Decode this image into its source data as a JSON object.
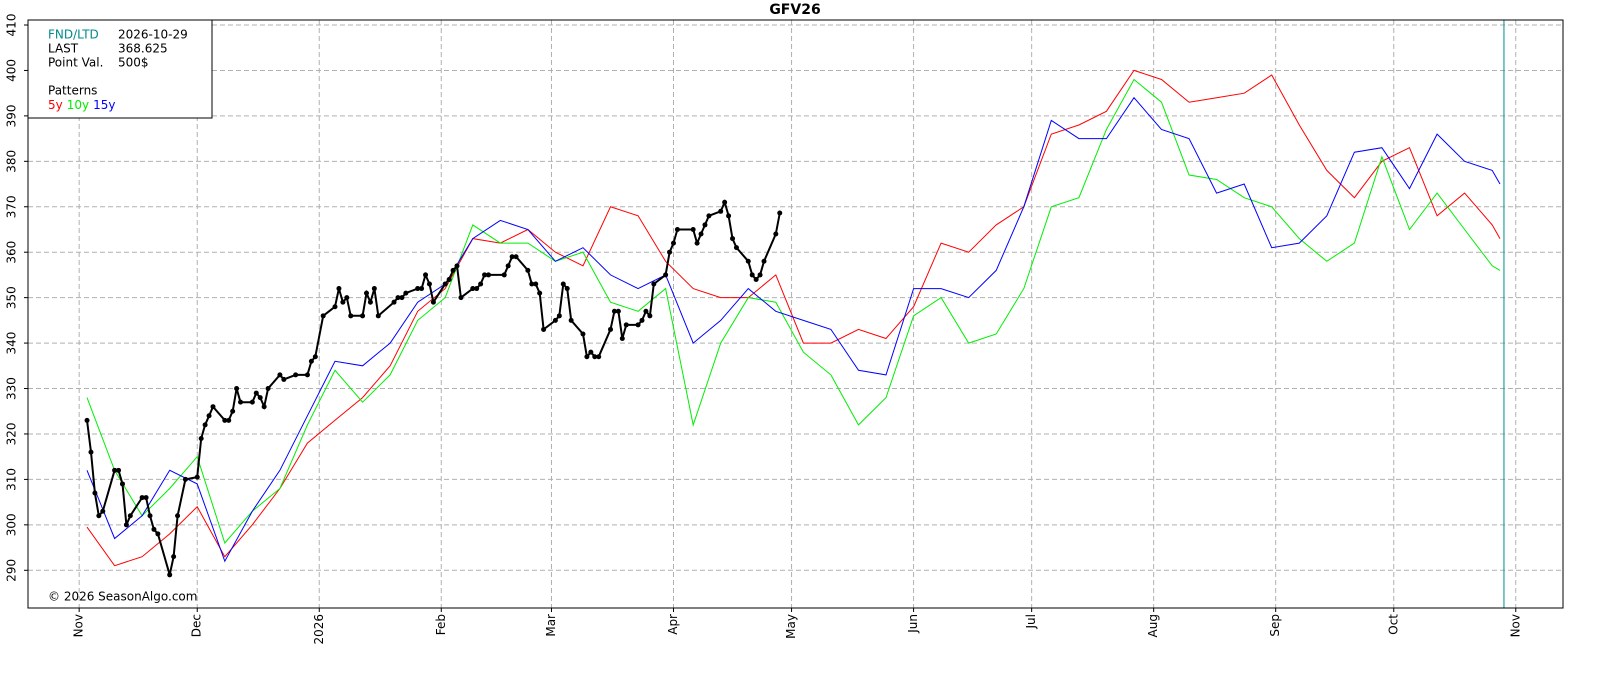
{
  "chart_data": {
    "type": "line",
    "title": "GFV26",
    "info": {
      "fnd_label": "FND/LTD",
      "fnd": "2026-10-29",
      "last_label": "LAST",
      "last": 368.625,
      "point_label": "Point Val.",
      "point_value": "500$",
      "patterns_label": "Patterns"
    },
    "copyright": "© 2026 SeasonAlgo.com",
    "xlim": [
      "2025-10-19",
      "2026-11-13"
    ],
    "xticks": [
      {
        "value": "2025-11-01",
        "label": "Nov"
      },
      {
        "value": "2025-12-01",
        "label": "Dec"
      },
      {
        "value": "2026-01-01",
        "label": "2026"
      },
      {
        "value": "2026-02-01",
        "label": "Feb"
      },
      {
        "value": "2026-03-01",
        "label": "Mar"
      },
      {
        "value": "2026-04-01",
        "label": "Apr"
      },
      {
        "value": "2026-05-01",
        "label": "May"
      },
      {
        "value": "2026-06-01",
        "label": "Jun"
      },
      {
        "value": "2026-07-01",
        "label": "Jul"
      },
      {
        "value": "2026-08-01",
        "label": "Aug"
      },
      {
        "value": "2026-09-01",
        "label": "Sep"
      },
      {
        "value": "2026-10-01",
        "label": "Oct"
      },
      {
        "value": "2026-11-01",
        "label": "Nov"
      }
    ],
    "ylim": [
      281.7,
      411.1
    ],
    "yticks": [
      290,
      300,
      310,
      320,
      330,
      340,
      350,
      360,
      370,
      380,
      390,
      400,
      410
    ],
    "grid": true,
    "series": [
      {
        "name": "5y",
        "color": "#ff0000",
        "x": [
          "2025-11-03",
          "2025-11-10",
          "2025-11-17",
          "2025-11-24",
          "2025-12-01",
          "2025-12-08",
          "2025-12-15",
          "2025-12-22",
          "2025-12-29",
          "2026-01-05",
          "2026-01-12",
          "2026-01-19",
          "2026-01-26",
          "2026-02-02",
          "2026-02-09",
          "2026-02-16",
          "2026-02-23",
          "2026-03-02",
          "2026-03-09",
          "2026-03-16",
          "2026-03-23",
          "2026-03-30",
          "2026-04-06",
          "2026-04-13",
          "2026-04-20",
          "2026-04-27",
          "2026-05-04",
          "2026-05-11",
          "2026-05-18",
          "2026-05-25",
          "2026-06-01",
          "2026-06-08",
          "2026-06-15",
          "2026-06-22",
          "2026-06-29",
          "2026-07-06",
          "2026-07-13",
          "2026-07-20",
          "2026-07-27",
          "2026-08-03",
          "2026-08-10",
          "2026-08-17",
          "2026-08-24",
          "2026-08-31",
          "2026-09-07",
          "2026-09-14",
          "2026-09-21",
          "2026-09-28",
          "2026-10-05",
          "2026-10-12",
          "2026-10-19",
          "2026-10-26",
          "2026-10-28"
        ],
        "values": [
          299.5,
          291,
          293,
          298,
          304,
          293,
          300,
          308,
          318,
          323,
          328,
          335,
          347,
          352,
          363,
          362,
          365,
          360,
          357,
          370,
          368,
          358,
          352,
          350,
          350,
          355,
          340,
          340,
          343,
          341,
          348,
          362,
          360,
          366,
          370,
          386,
          388,
          391,
          400,
          398,
          393,
          394,
          395,
          399,
          388,
          378,
          372,
          380,
          383,
          368,
          373,
          366,
          363
        ]
      },
      {
        "name": "10y",
        "color": "#00ee00",
        "x": [
          "2025-11-03",
          "2025-11-10",
          "2025-11-17",
          "2025-11-24",
          "2025-12-01",
          "2025-12-08",
          "2025-12-15",
          "2025-12-22",
          "2025-12-29",
          "2026-01-05",
          "2026-01-12",
          "2026-01-19",
          "2026-01-26",
          "2026-02-02",
          "2026-02-09",
          "2026-02-16",
          "2026-02-23",
          "2026-03-02",
          "2026-03-09",
          "2026-03-16",
          "2026-03-23",
          "2026-03-30",
          "2026-04-06",
          "2026-04-13",
          "2026-04-20",
          "2026-04-27",
          "2026-05-04",
          "2026-05-11",
          "2026-05-18",
          "2026-05-25",
          "2026-06-01",
          "2026-06-08",
          "2026-06-15",
          "2026-06-22",
          "2026-06-29",
          "2026-07-06",
          "2026-07-13",
          "2026-07-20",
          "2026-07-27",
          "2026-08-03",
          "2026-08-10",
          "2026-08-17",
          "2026-08-24",
          "2026-08-31",
          "2026-09-07",
          "2026-09-14",
          "2026-09-21",
          "2026-09-28",
          "2026-10-05",
          "2026-10-12",
          "2026-10-19",
          "2026-10-26",
          "2026-10-28"
        ],
        "values": [
          328,
          312,
          302,
          308,
          315,
          296,
          303,
          308,
          322,
          334,
          327,
          333,
          345,
          350,
          366,
          362,
          362,
          358,
          360,
          349,
          347,
          352,
          322,
          340,
          350,
          349,
          338,
          333,
          322,
          328,
          346,
          350,
          340,
          342,
          352,
          370,
          372,
          387,
          398,
          393,
          377,
          376,
          372,
          370,
          363,
          358,
          362,
          381,
          365,
          373,
          365,
          357,
          356
        ]
      },
      {
        "name": "15y",
        "color": "#0000ff",
        "x": [
          "2025-11-03",
          "2025-11-10",
          "2025-11-17",
          "2025-11-24",
          "2025-12-01",
          "2025-12-08",
          "2025-12-15",
          "2025-12-22",
          "2025-12-29",
          "2026-01-05",
          "2026-01-12",
          "2026-01-19",
          "2026-01-26",
          "2026-02-02",
          "2026-02-09",
          "2026-02-16",
          "2026-02-23",
          "2026-03-02",
          "2026-03-09",
          "2026-03-16",
          "2026-03-23",
          "2026-03-30",
          "2026-04-06",
          "2026-04-13",
          "2026-04-20",
          "2026-04-27",
          "2026-05-04",
          "2026-05-11",
          "2026-05-18",
          "2026-05-25",
          "2026-06-01",
          "2026-06-08",
          "2026-06-15",
          "2026-06-22",
          "2026-06-29",
          "2026-07-06",
          "2026-07-13",
          "2026-07-20",
          "2026-07-27",
          "2026-08-03",
          "2026-08-10",
          "2026-08-17",
          "2026-08-24",
          "2026-08-31",
          "2026-09-07",
          "2026-09-14",
          "2026-09-21",
          "2026-09-28",
          "2026-10-05",
          "2026-10-12",
          "2026-10-19",
          "2026-10-26",
          "2026-10-28"
        ],
        "values": [
          312,
          297,
          302,
          312,
          309,
          292,
          303,
          312,
          324,
          336,
          335,
          340,
          349,
          353,
          363,
          367,
          365,
          358,
          361,
          355,
          352,
          355,
          340,
          345,
          352,
          347,
          345,
          343,
          334,
          333,
          352,
          352,
          350,
          356,
          370,
          389,
          385,
          385,
          394,
          387,
          385,
          373,
          375,
          361,
          362,
          368,
          382,
          383,
          374,
          386,
          380,
          378,
          375
        ]
      },
      {
        "color": "#000000",
        "markers": true,
        "x": [
          "2025-11-03",
          "2025-11-04",
          "2025-11-05",
          "2025-11-06",
          "2025-11-07",
          "2025-11-10",
          "2025-11-11",
          "2025-11-12",
          "2025-11-13",
          "2025-11-14",
          "2025-11-17",
          "2025-11-18",
          "2025-11-19",
          "2025-11-20",
          "2025-11-21",
          "2025-11-24",
          "2025-11-25",
          "2025-11-26",
          "2025-11-28",
          "2025-12-01",
          "2025-12-02",
          "2025-12-03",
          "2025-12-04",
          "2025-12-05",
          "2025-12-08",
          "2025-12-09",
          "2025-12-10",
          "2025-12-11",
          "2025-12-12",
          "2025-12-15",
          "2025-12-16",
          "2025-12-17",
          "2025-12-18",
          "2025-12-19",
          "2025-12-22",
          "2025-12-23",
          "2025-12-26",
          "2025-12-29",
          "2025-12-30",
          "2025-12-31",
          "2026-01-02",
          "2026-01-05",
          "2026-01-06",
          "2026-01-07",
          "2026-01-08",
          "2026-01-09",
          "2026-01-12",
          "2026-01-13",
          "2026-01-14",
          "2026-01-15",
          "2026-01-16",
          "2026-01-20",
          "2026-01-21",
          "2026-01-22",
          "2026-01-23",
          "2026-01-26",
          "2026-01-27",
          "2026-01-28",
          "2026-01-29",
          "2026-01-30",
          "2026-02-02",
          "2026-02-03",
          "2026-02-04",
          "2026-02-05",
          "2026-02-06",
          "2026-02-09",
          "2026-02-10",
          "2026-02-11",
          "2026-02-12",
          "2026-02-13",
          "2026-02-17",
          "2026-02-18",
          "2026-02-19",
          "2026-02-20",
          "2026-02-23",
          "2026-02-24",
          "2026-02-25",
          "2026-02-26",
          "2026-02-27",
          "2026-03-02",
          "2026-03-03",
          "2026-03-04",
          "2026-03-05",
          "2026-03-06",
          "2026-03-09",
          "2026-03-10",
          "2026-03-11",
          "2026-03-12",
          "2026-03-13",
          "2026-03-16",
          "2026-03-17",
          "2026-03-18",
          "2026-03-19",
          "2026-03-20",
          "2026-03-23",
          "2026-03-24",
          "2026-03-25",
          "2026-03-26",
          "2026-03-27",
          "2026-03-30",
          "2026-03-31",
          "2026-04-01",
          "2026-04-02",
          "2026-04-06",
          "2026-04-07",
          "2026-04-08",
          "2026-04-09",
          "2026-04-10",
          "2026-04-13",
          "2026-04-14",
          "2026-04-15",
          "2026-04-16",
          "2026-04-17",
          "2026-04-20",
          "2026-04-21",
          "2026-04-22",
          "2026-04-23",
          "2026-04-24",
          "2026-04-27",
          "2026-04-28"
        ],
        "values": [
          323,
          316,
          307,
          302,
          303,
          312,
          312,
          309,
          300,
          302,
          306,
          306,
          302,
          299,
          298,
          289,
          293,
          302,
          310,
          310.5,
          319,
          322,
          324,
          326,
          323,
          323,
          325,
          330,
          327,
          327,
          329,
          328,
          326,
          330,
          333,
          332,
          333,
          333,
          336,
          337,
          346,
          348,
          352,
          349,
          350,
          346,
          346,
          351,
          349,
          352,
          346,
          349,
          350,
          350,
          351,
          352,
          352,
          355,
          353,
          349,
          353,
          354,
          356,
          357,
          350,
          352,
          352,
          353,
          355,
          355,
          355,
          357,
          359,
          359,
          356,
          353,
          353,
          351,
          343,
          345,
          346,
          353,
          352,
          345,
          342,
          337,
          338,
          337,
          337,
          343,
          347,
          347,
          341,
          344,
          344,
          345,
          347,
          346,
          353,
          355,
          360,
          362,
          365,
          365,
          362,
          364,
          366,
          368,
          369,
          371,
          368,
          363,
          361,
          358,
          355,
          354,
          355,
          358,
          364,
          368.625
        ]
      }
    ]
  }
}
